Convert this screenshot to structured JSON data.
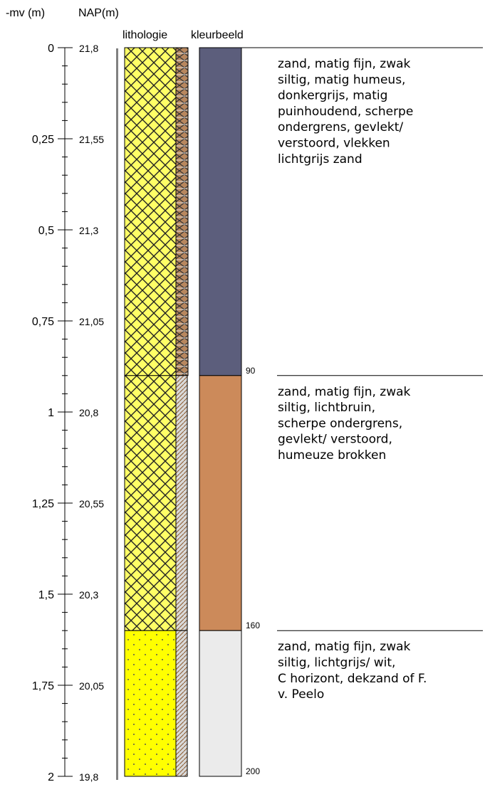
{
  "headers": {
    "mv": "-mv (m)",
    "nap": "NAP(m)",
    "lithologie": "lithologie",
    "kleurbeeld": "kleurbeeld"
  },
  "depth_axis": {
    "top_m": 0,
    "bottom_m": 2,
    "minor_step_m": 0.05,
    "labels": [
      {
        "mv": "0",
        "nap": "21,8",
        "depth_m": 0
      },
      {
        "mv": "0,25",
        "nap": "21,55",
        "depth_m": 0.25
      },
      {
        "mv": "0,5",
        "nap": "21,3",
        "depth_m": 0.5
      },
      {
        "mv": "0,75",
        "nap": "21,05",
        "depth_m": 0.75
      },
      {
        "mv": "1",
        "nap": "20,8",
        "depth_m": 1.0
      },
      {
        "mv": "1,25",
        "nap": "20,55",
        "depth_m": 1.25
      },
      {
        "mv": "1,5",
        "nap": "20,3",
        "depth_m": 1.5
      },
      {
        "mv": "1,75",
        "nap": "20,05",
        "depth_m": 1.75
      },
      {
        "mv": "2",
        "nap": "19,8",
        "depth_m": 2.0
      }
    ]
  },
  "layers": [
    {
      "top_cm": 0,
      "bottom_cm": 90,
      "pattern": "crosshatch",
      "color": "#5c5e7c",
      "boundary_label": "90",
      "description": [
        "zand, matig fijn, zwak",
        "siltig, matig humeus,",
        "donkergrijs, matig",
        "puinhoudend, scherpe",
        "ondergrens, gevlekt/",
        "verstoord, vlekken",
        "lichtgrijs zand"
      ]
    },
    {
      "top_cm": 90,
      "bottom_cm": 160,
      "pattern": "crosshatch",
      "color": "#cc8a5a",
      "boundary_label": "160",
      "description": [
        "zand, matig fijn, zwak",
        "siltig, lichtbruin,",
        "scherpe ondergrens,",
        "gevlekt/ verstoord,",
        "humeuze brokken"
      ]
    },
    {
      "top_cm": 160,
      "bottom_cm": 200,
      "pattern": "dots",
      "color": "#ebebeb",
      "boundary_label": "200",
      "description": [
        "zand, matig fijn, zwak",
        "siltig, lichtgrijs/ wit,",
        "C horizont, dekzand of F.",
        "v. Peelo"
      ]
    }
  ],
  "colors": {
    "sand_fill": "#ffff66",
    "sand_dots_fill": "#ffff00",
    "axis_bar": "#808080"
  }
}
